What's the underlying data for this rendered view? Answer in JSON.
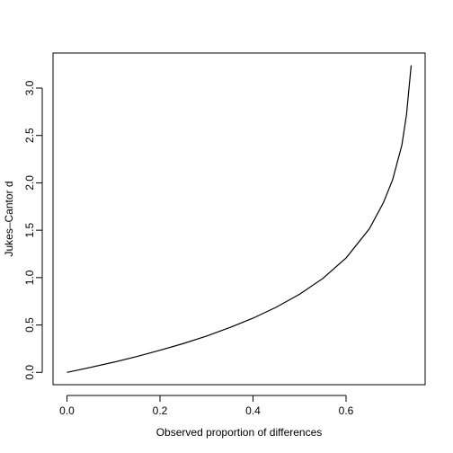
{
  "chart_data": {
    "type": "line",
    "title": "",
    "xlabel": "Observed proportion of differences",
    "ylabel": "Jukes–Cantor d",
    "xlim": [
      -0.03,
      0.77
    ],
    "ylim": [
      -0.13,
      3.37
    ],
    "x_ticks": [
      0.0,
      0.2,
      0.4,
      0.6
    ],
    "x_tick_labels": [
      "0.0",
      "0.2",
      "0.4",
      "0.6"
    ],
    "y_ticks": [
      0.0,
      0.5,
      1.0,
      1.5,
      2.0,
      2.5,
      3.0
    ],
    "y_tick_labels": [
      "0.0",
      "0.5",
      "1.0",
      "1.5",
      "2.0",
      "2.5",
      "3.0"
    ],
    "grid": false,
    "legend": "none",
    "series": [
      {
        "x": [
          0.0,
          0.05,
          0.1,
          0.15,
          0.2,
          0.25,
          0.3,
          0.35,
          0.4,
          0.45,
          0.5,
          0.55,
          0.6,
          0.65,
          0.68,
          0.7,
          0.72,
          0.73,
          0.735,
          0.74
        ],
        "y": [
          0.0,
          0.052,
          0.107,
          0.167,
          0.233,
          0.304,
          0.383,
          0.473,
          0.572,
          0.688,
          0.824,
          0.991,
          1.207,
          1.514,
          1.788,
          2.031,
          2.399,
          2.722,
          2.983,
          3.24
        ]
      }
    ]
  }
}
